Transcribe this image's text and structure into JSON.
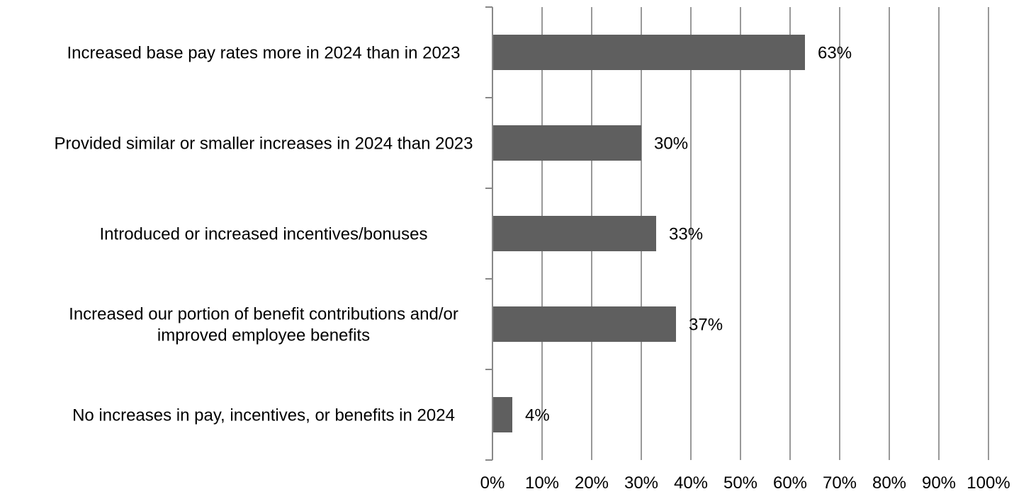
{
  "chart_data": {
    "type": "bar",
    "orientation": "horizontal",
    "title": "",
    "xlabel": "",
    "ylabel": "",
    "categories": [
      [
        "Increased base pay rates more in 2024 than in 2023"
      ],
      [
        "Provided similar or smaller increases in 2024 than 2023"
      ],
      [
        "Introduced or increased incentives/bonuses"
      ],
      [
        "Increased our portion of benefit contributions and/or",
        "improved employee benefits"
      ],
      [
        "No increases in pay, incentives, or benefits in 2024"
      ]
    ],
    "values": [
      63,
      30,
      33,
      37,
      4
    ],
    "data_labels": [
      "63%",
      "30%",
      "33%",
      "37%",
      "4%"
    ],
    "xlim": [
      0,
      100
    ],
    "x_ticks": [
      0,
      10,
      20,
      30,
      40,
      50,
      60,
      70,
      80,
      90,
      100
    ],
    "x_tick_labels": [
      "0%",
      "10%",
      "20%",
      "30%",
      "40%",
      "50%",
      "60%",
      "70%",
      "80%",
      "90%",
      "100%"
    ],
    "gridlines": "vertical",
    "legend": "none",
    "colors": {
      "bar": "#5f5f5f",
      "grid": "#999999",
      "axis": "#888888",
      "text": "#000000"
    }
  }
}
